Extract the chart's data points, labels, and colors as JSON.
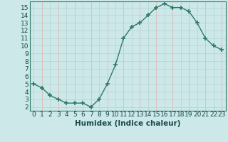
{
  "x": [
    0,
    1,
    2,
    3,
    4,
    5,
    6,
    7,
    8,
    9,
    10,
    11,
    12,
    13,
    14,
    15,
    16,
    17,
    18,
    19,
    20,
    21,
    22,
    23
  ],
  "y": [
    5.0,
    4.5,
    3.5,
    3.0,
    2.5,
    2.5,
    2.5,
    2.0,
    3.0,
    5.0,
    7.5,
    11.0,
    12.5,
    13.0,
    14.0,
    15.0,
    15.5,
    15.0,
    15.0,
    14.5,
    13.0,
    11.0,
    10.0,
    9.5
  ],
  "line_color": "#2d7a6a",
  "marker_color": "#2d7a6a",
  "bg_color": "#cce8e8",
  "grid_color_h": "#b8d4d4",
  "grid_color_v_pink": "#e0b8b8",
  "grid_color_v_teal": "#b8d4d4",
  "xlabel": "Humidex (Indice chaleur)",
  "xlim": [
    -0.5,
    23.5
  ],
  "ylim": [
    1.5,
    15.8
  ],
  "yticks": [
    2,
    3,
    4,
    5,
    6,
    7,
    8,
    9,
    10,
    11,
    12,
    13,
    14,
    15
  ],
  "xticks": [
    0,
    1,
    2,
    3,
    4,
    5,
    6,
    7,
    8,
    9,
    10,
    11,
    12,
    13,
    14,
    15,
    16,
    17,
    18,
    19,
    20,
    21,
    22,
    23
  ],
  "tick_label_fontsize": 6.5,
  "xlabel_fontsize": 7.5,
  "line_width": 1.0,
  "marker_size": 4.0
}
